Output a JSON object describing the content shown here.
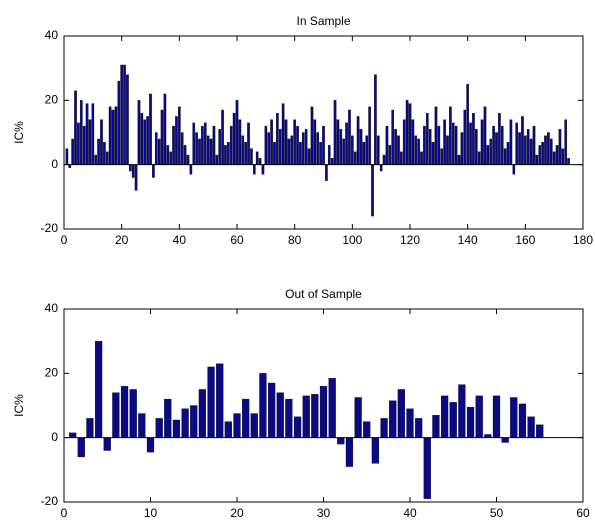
{
  "chart_data": [
    {
      "type": "bar",
      "title": "In Sample",
      "y_label": "IC%",
      "color": "#0a0a82",
      "x": [
        1,
        2,
        3,
        4,
        5,
        6,
        7,
        8,
        9,
        10,
        11,
        12,
        13,
        14,
        15,
        16,
        17,
        18,
        19,
        20,
        21,
        22,
        23,
        24,
        25,
        26,
        27,
        28,
        29,
        30,
        31,
        32,
        33,
        34,
        35,
        36,
        37,
        38,
        39,
        40,
        41,
        42,
        43,
        44,
        45,
        46,
        47,
        48,
        49,
        50,
        51,
        52,
        53,
        54,
        55,
        56,
        57,
        58,
        59,
        60,
        61,
        62,
        63,
        64,
        65,
        66,
        67,
        68,
        69,
        70,
        71,
        72,
        73,
        74,
        75,
        76,
        77,
        78,
        79,
        80,
        81,
        82,
        83,
        84,
        85,
        86,
        87,
        88,
        89,
        90,
        91,
        92,
        93,
        94,
        95,
        96,
        97,
        98,
        99,
        100,
        101,
        102,
        103,
        104,
        105,
        106,
        107,
        108,
        109,
        110,
        111,
        112,
        113,
        114,
        115,
        116,
        117,
        118,
        119,
        120,
        121,
        122,
        123,
        124,
        125,
        126,
        127,
        128,
        129,
        130,
        131,
        132,
        133,
        134,
        135,
        136,
        137,
        138,
        139,
        140,
        141,
        142,
        143,
        144,
        145,
        146,
        147,
        148,
        149,
        150,
        151,
        152,
        153,
        154,
        155,
        156,
        157,
        158,
        159,
        160,
        161,
        162,
        163,
        164,
        165,
        166,
        167,
        168,
        169,
        170,
        171,
        172,
        173,
        174,
        175
      ],
      "values": [
        5,
        -1,
        8,
        23,
        13,
        20,
        12,
        19,
        14,
        19,
        3,
        8,
        14,
        7,
        4,
        18,
        17,
        18,
        26,
        31,
        31,
        28,
        -2,
        -4,
        -8,
        20,
        16,
        14,
        15,
        22,
        -4,
        10,
        8,
        17,
        22,
        6,
        4,
        12,
        15,
        18,
        10,
        6,
        3,
        -3,
        13,
        10,
        8,
        12,
        13,
        9,
        8,
        12,
        3,
        11,
        17,
        6,
        7,
        12,
        16,
        20,
        14,
        9,
        7,
        13,
        5,
        -3,
        4,
        2,
        -3,
        12,
        10,
        14,
        7,
        16,
        11,
        19,
        14,
        8,
        9,
        14,
        12,
        7,
        10,
        11,
        5,
        18,
        14,
        10,
        7,
        12,
        -5,
        6,
        2,
        20,
        14,
        11,
        8,
        13,
        17,
        9,
        4,
        15,
        11,
        7,
        9,
        18,
        -16,
        28,
        9,
        -2,
        3,
        12,
        6,
        17,
        11,
        9,
        4,
        14,
        20,
        19,
        14,
        9,
        8,
        4,
        12,
        16,
        11,
        7,
        18,
        12,
        5,
        14,
        9,
        18,
        13,
        12,
        3,
        10,
        17,
        25,
        13,
        16,
        11,
        4,
        14,
        18,
        6,
        8,
        12,
        10,
        16,
        12,
        5,
        7,
        14,
        -3,
        13,
        10,
        15,
        9,
        11,
        8,
        12,
        3,
        6,
        7,
        9,
        10,
        8,
        4,
        6,
        11,
        5,
        14,
        2
      ],
      "xlim": [
        0,
        180
      ],
      "xticks": [
        0,
        20,
        40,
        60,
        80,
        100,
        120,
        140,
        160,
        180
      ],
      "ylim": [
        -20,
        40
      ],
      "yticks": [
        -20,
        0,
        20,
        40
      ]
    },
    {
      "type": "bar",
      "title": "Out of Sample",
      "y_label": "IC%",
      "color": "#0a0a82",
      "x": [
        1,
        2,
        3,
        4,
        5,
        6,
        7,
        8,
        9,
        10,
        11,
        12,
        13,
        14,
        15,
        16,
        17,
        18,
        19,
        20,
        21,
        22,
        23,
        24,
        25,
        26,
        27,
        28,
        29,
        30,
        31,
        32,
        33,
        34,
        35,
        36,
        37,
        38,
        39,
        40,
        41,
        42,
        43,
        44,
        45,
        46,
        47,
        48,
        49,
        50,
        51,
        52,
        53,
        54,
        55
      ],
      "values": [
        1.5,
        -6,
        6,
        30,
        -4,
        14,
        16,
        15,
        7.5,
        -4.5,
        6,
        12,
        5.5,
        9,
        10,
        15,
        22,
        23,
        5,
        7.5,
        12,
        7.5,
        20,
        17,
        14,
        12,
        6.5,
        13,
        13.5,
        16,
        18.5,
        -2,
        -9,
        12.5,
        5,
        -8,
        6,
        11.5,
        15,
        9,
        6,
        -19,
        7,
        13,
        11,
        16.5,
        9.5,
        13,
        1,
        13,
        -1.5,
        12.5,
        10.5,
        6.5,
        4
      ],
      "xlim": [
        0,
        60
      ],
      "xticks": [
        0,
        10,
        20,
        30,
        40,
        50,
        60
      ],
      "ylim": [
        -20,
        40
      ],
      "yticks": [
        -20,
        0,
        20,
        40
      ]
    }
  ]
}
